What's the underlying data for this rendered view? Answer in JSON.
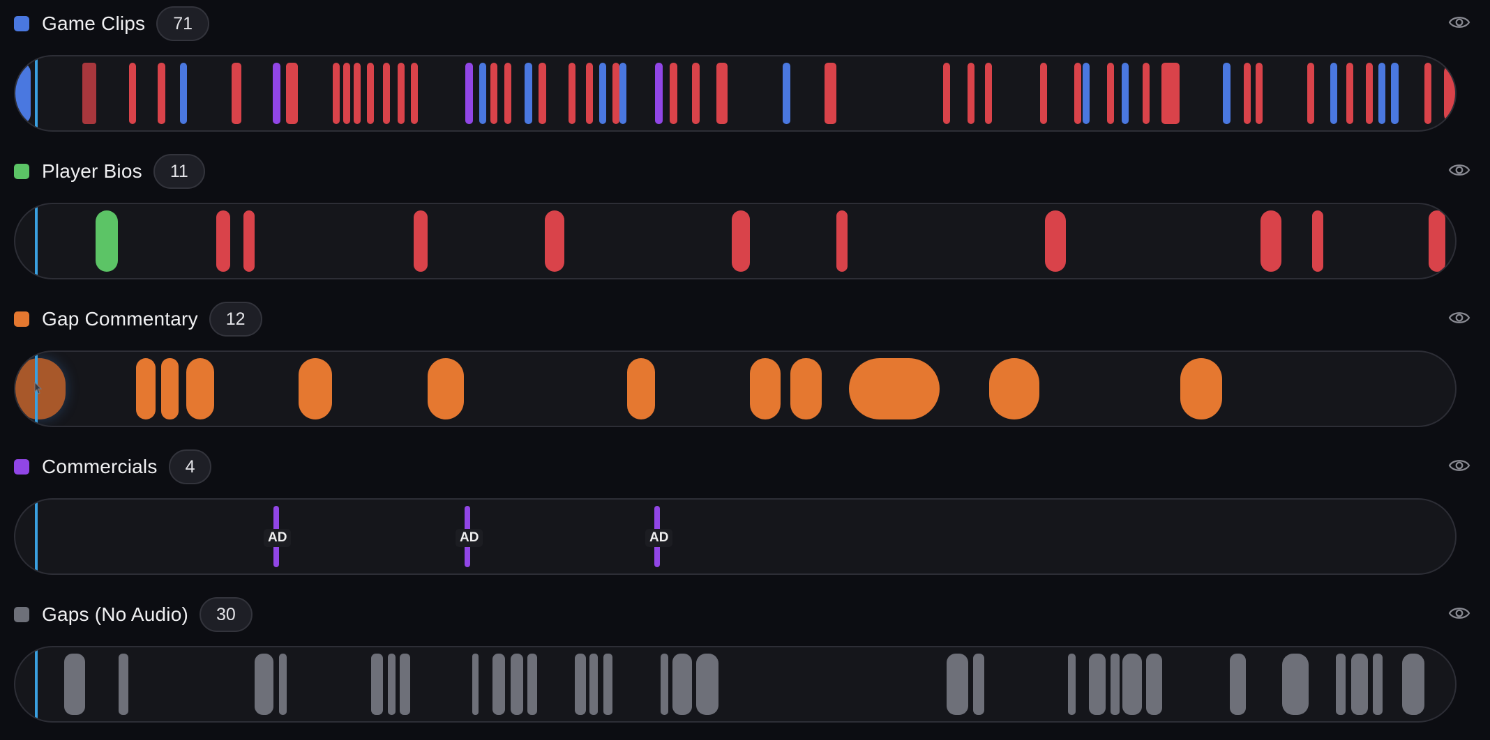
{
  "colors": {
    "background": "#0c0d12",
    "lane": "#15161b",
    "playhead": "#3aa0e0",
    "game_clip_red": "#d9434a",
    "game_clip_blue": "#4a78e0",
    "commercial_purple": "#9146e6",
    "bio_green": "#5cc466",
    "commentary_orange": "#e57830",
    "gap_gray": "#6e7079"
  },
  "icons": {
    "visibility": "eye-icon",
    "cursor": "pointer-cursor-icon"
  },
  "tracks": [
    {
      "id": "game-clips",
      "title": "Game Clips",
      "count": "71",
      "color": "#4a78e0"
    },
    {
      "id": "player-bios",
      "title": "Player Bios",
      "count": "11",
      "color": "#5cc466"
    },
    {
      "id": "gap-commentary",
      "title": "Gap Commentary",
      "count": "12",
      "color": "#e57830"
    },
    {
      "id": "commercials",
      "title": "Commercials",
      "count": "4",
      "color": "#9146e6"
    },
    {
      "id": "gaps",
      "title": "Gaps (No Audio)",
      "count": "30",
      "color": "#6e7079"
    }
  ],
  "commercials": {
    "ad_label": "AD"
  }
}
